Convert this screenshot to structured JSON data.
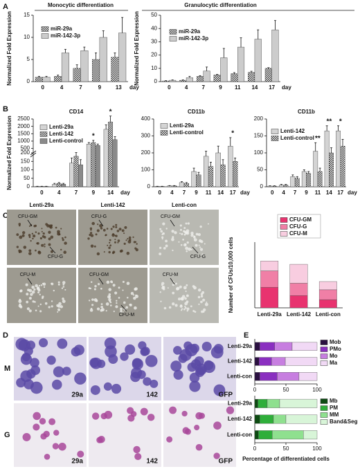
{
  "chart_data": [
    {
      "type": "bar",
      "title": "Monocytic differentiation",
      "ylabel": "Normalized Fold Expression",
      "categories": [
        "0",
        "4",
        "7",
        "9",
        "13"
      ],
      "x_unit": "day",
      "ylim": [
        0,
        15
      ],
      "yticks": [
        0,
        5,
        10,
        15
      ],
      "series": [
        {
          "name": "miR-29a",
          "color": "#444444",
          "fill_pattern": "checker",
          "values": [
            1,
            1.2,
            3,
            5,
            5.5
          ],
          "errors": [
            0.2,
            0.3,
            0.8,
            1.5,
            1
          ]
        },
        {
          "name": "miR-142-3p",
          "color": "#cccccc",
          "values": [
            1,
            6.5,
            7,
            10,
            11
          ],
          "errors": [
            0.2,
            0.8,
            0.8,
            1.5,
            3.5
          ]
        }
      ]
    },
    {
      "type": "bar",
      "title": "Granulocytic differentiation",
      "ylabel": "Normalized Fold Expression",
      "categories": [
        "0",
        "4",
        "7",
        "9",
        "11",
        "14",
        "17"
      ],
      "x_unit": "day",
      "ylim": [
        0,
        50
      ],
      "yticks": [
        0,
        10,
        20,
        30,
        40,
        50
      ],
      "series": [
        {
          "name": "miR-29a",
          "color": "#444444",
          "fill_pattern": "checker",
          "values": [
            0.5,
            1,
            4,
            5,
            6,
            7,
            10
          ],
          "errors": [
            0.2,
            0.3,
            0.5,
            0.5,
            0.8,
            0.8,
            0.5
          ]
        },
        {
          "name": "miR-142-3p",
          "color": "#cccccc",
          "values": [
            1,
            3,
            8,
            18,
            26,
            32,
            39
          ],
          "errors": [
            0.3,
            1,
            3,
            7,
            7,
            7,
            7
          ]
        }
      ]
    },
    {
      "type": "bar",
      "title": "CD14",
      "ylabel": "Normalized Fold Expression",
      "categories": [
        "0",
        "4",
        "7",
        "9",
        "14"
      ],
      "x_unit": "day",
      "ylim": [
        0,
        2500
      ],
      "broken_at": 200,
      "yticks": [
        0,
        50,
        100,
        150,
        200,
        500,
        1000,
        1500,
        2000,
        2500
      ],
      "series": [
        {
          "name": "Lenti-29a",
          "color": "#d4d4d4",
          "values": [
            2,
            15,
            140,
            800,
            1800
          ],
          "errors": [
            1,
            5,
            30,
            100,
            300
          ]
        },
        {
          "name": "Lenti-142",
          "color": "#444444",
          "fill_pattern": "checker",
          "values": [
            2,
            20,
            180,
            900,
            2300
          ],
          "errors": [
            1,
            5,
            40,
            150,
            400
          ]
        },
        {
          "name": "Lenti-control",
          "color": "#8a8a8a",
          "values": [
            2,
            15,
            130,
            700,
            1100
          ],
          "errors": [
            1,
            5,
            30,
            100,
            200
          ]
        }
      ],
      "annotations": [
        {
          "text": "*",
          "category": "9"
        },
        {
          "text": "*",
          "category": "14"
        }
      ]
    },
    {
      "type": "bar",
      "title": "CD11b",
      "categories": [
        "0",
        "4",
        "7",
        "9",
        "11",
        "14",
        "17"
      ],
      "x_unit": "day",
      "ylim": [
        0,
        400
      ],
      "yticks": [
        0,
        100,
        200,
        300,
        400
      ],
      "series": [
        {
          "name": "Lenti-29a",
          "color": "#d4d4d4",
          "values": [
            2,
            5,
            25,
            90,
            180,
            200,
            240
          ],
          "errors": [
            1,
            2,
            5,
            20,
            30,
            40,
            50
          ]
        },
        {
          "name": "Lenti-control",
          "color": "#444444",
          "fill_pattern": "checker",
          "values": [
            2,
            5,
            20,
            70,
            120,
            130,
            150
          ],
          "errors": [
            1,
            2,
            5,
            15,
            25,
            30,
            20
          ]
        }
      ],
      "annotations": [
        {
          "text": "*",
          "category": "17"
        }
      ]
    },
    {
      "type": "bar",
      "title": "CD11b",
      "categories": [
        "0",
        "4",
        "7",
        "9",
        "11",
        "14",
        "17"
      ],
      "x_unit": "day",
      "ylim": [
        0,
        200
      ],
      "yticks": [
        0,
        50,
        100,
        150,
        200
      ],
      "series": [
        {
          "name": "Lenti-142",
          "color": "#d4d4d4",
          "values": [
            2,
            5,
            30,
            45,
            105,
            165,
            165
          ],
          "errors": [
            1,
            2,
            5,
            5,
            25,
            15,
            15
          ]
        },
        {
          "name": "Lenti-control",
          "color": "#444444",
          "fill_pattern": "checker",
          "values": [
            2,
            5,
            25,
            40,
            45,
            100,
            120
          ],
          "errors": [
            1,
            2,
            5,
            5,
            10,
            15,
            20
          ]
        }
      ],
      "annotations": [
        {
          "text": "**",
          "category": "11"
        },
        {
          "text": "**",
          "category": "14"
        },
        {
          "text": "*",
          "category": "17"
        }
      ]
    },
    {
      "type": "stacked_bar",
      "ylabel": "Number of CFUs/10,000 cells",
      "categories": [
        "Lenti-29a",
        "Lenti-142",
        "Lenti-con"
      ],
      "ylim": [
        0,
        80
      ],
      "series": [
        {
          "name": "CFU-GM",
          "color": "#e8336f",
          "values": [
            25,
            15,
            10
          ]
        },
        {
          "name": "CFU-G",
          "color": "#f07fa6",
          "values": [
            20,
            15,
            12
          ]
        },
        {
          "name": "CFU-M",
          "color": "#f8cde0",
          "values": [
            12,
            23,
            10
          ]
        }
      ]
    },
    {
      "type": "hbar_stacked",
      "categories": [
        "Lenti-29a",
        "Lenti-142",
        "Lenti-con"
      ],
      "xlim": [
        0,
        100
      ],
      "xticks": [
        0,
        50,
        100
      ],
      "series": [
        {
          "name": "Mob",
          "color": "#2a1040",
          "values": [
            8,
            7,
            8
          ]
        },
        {
          "name": "PMo",
          "color": "#8a2fc0",
          "values": [
            24,
            20,
            28
          ]
        },
        {
          "name": "Mo",
          "color": "#c77ee0",
          "values": [
            28,
            22,
            35
          ]
        },
        {
          "name": "Ma",
          "color": "#f1d9f5",
          "values": [
            40,
            51,
            29
          ]
        }
      ]
    },
    {
      "type": "hbar_stacked",
      "xlabel": "Percentage of differentiated cells",
      "categories": [
        "Lenti-29a",
        "Lenti-142",
        "Lenti-con"
      ],
      "xlim": [
        0,
        100
      ],
      "xticks": [
        0,
        50,
        100
      ],
      "series": [
        {
          "name": "Mb",
          "color": "#0d4a12",
          "values": [
            5,
            8,
            6
          ]
        },
        {
          "name": "PM",
          "color": "#2fae3a",
          "values": [
            15,
            22,
            22
          ]
        },
        {
          "name": "MM",
          "color": "#8fe08f",
          "values": [
            20,
            20,
            50
          ]
        },
        {
          "name": "Band&Seg",
          "color": "#d8f5d8",
          "values": [
            60,
            50,
            22
          ]
        }
      ]
    }
  ],
  "panels": [
    "A",
    "B",
    "C",
    "D",
    "E"
  ],
  "colony_images": {
    "columns": [
      "Lenti-29a",
      "Lenti-142",
      "Lenti-con"
    ],
    "labels": [
      [
        "CFU-GM",
        "CFU-G"
      ],
      [
        "CFU-G"
      ],
      [
        "CFU-GM",
        "CFU-G"
      ],
      [
        "CFU-M"
      ],
      [
        "CFU-GM",
        "CFU-M"
      ],
      [
        "CFU-M"
      ]
    ]
  },
  "smear_images": {
    "rows": [
      "M",
      "G"
    ],
    "columns": [
      "29a",
      "142",
      "GFP"
    ]
  }
}
